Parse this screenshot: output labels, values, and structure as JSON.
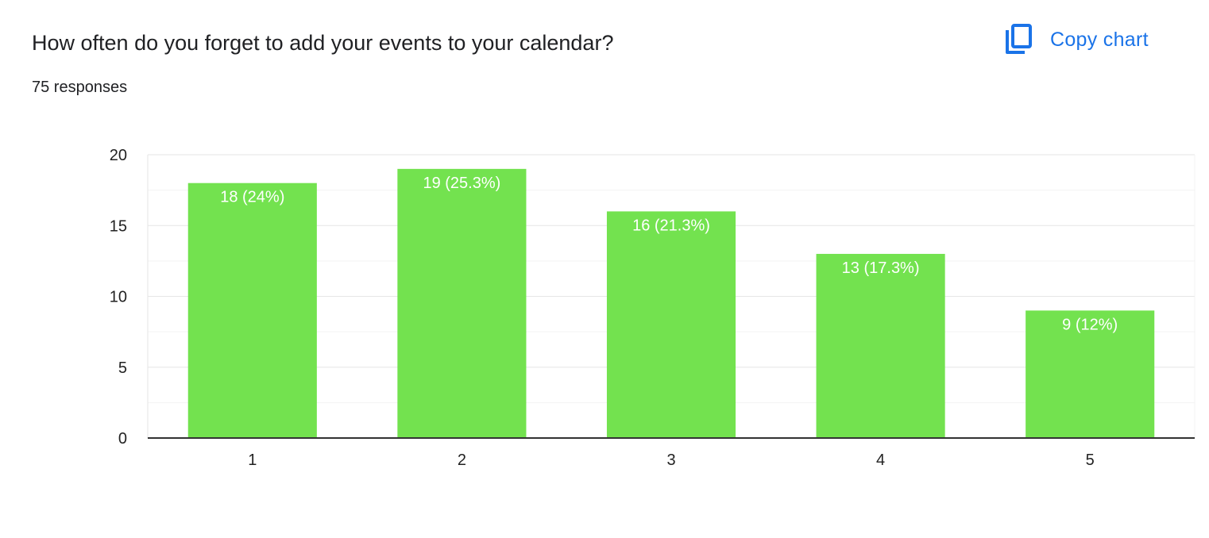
{
  "question": {
    "title": "How often do you forget to add your events to your calendar?",
    "responses_label": "75 responses"
  },
  "toolbar": {
    "copy_chart_label": "Copy chart",
    "copy_icon": "copy-icon"
  },
  "colors": {
    "bar": "#73e24f",
    "bar_label": "#ffffff",
    "accent": "#1a73e8",
    "axis": "#333333",
    "grid_major": "#e6e6e6",
    "grid_minor": "#f3f3f3",
    "tick_text": "#222222"
  },
  "chart_data": {
    "type": "bar",
    "title": "",
    "xlabel": "",
    "ylabel": "",
    "categories": [
      "1",
      "2",
      "3",
      "4",
      "5"
    ],
    "values": [
      18,
      19,
      16,
      13,
      9
    ],
    "data_labels": [
      "18 (24%)",
      "19 (25.3%)",
      "16 (21.3%)",
      "13 (17.3%)",
      "9 (12%)"
    ],
    "ylim": [
      0,
      20
    ],
    "yticks": [
      0,
      5,
      10,
      15,
      20
    ],
    "grid": true,
    "legend": "none"
  }
}
